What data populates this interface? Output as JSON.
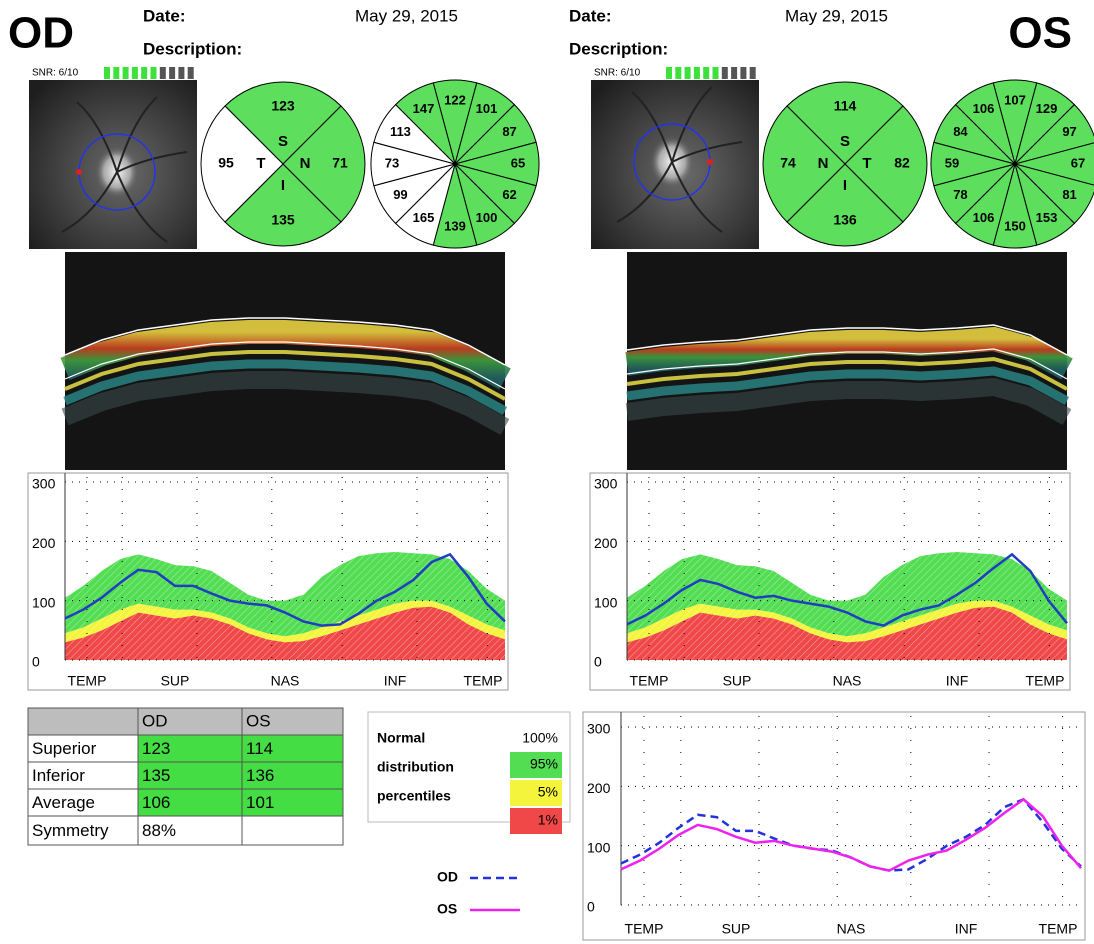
{
  "eyes": [
    {
      "label": "OD",
      "date_label": "Date:",
      "date": "May 29, 2015",
      "description_label": "Description:",
      "snr": "SNR: 6/10",
      "snr_bars": {
        "filled": 6,
        "total": 10
      },
      "quadrants": [
        {
          "label": "S",
          "value": 123,
          "color": "#5ddf5d"
        },
        {
          "label": "N",
          "value": 71,
          "color": "#5ddf5d"
        },
        {
          "label": "I",
          "value": 135,
          "color": "#5ddf5d"
        },
        {
          "label": "T",
          "value": 95,
          "color": "#ffffff"
        }
      ],
      "clock_hours": [
        {
          "value": 122,
          "color": "#5ddf5d"
        },
        {
          "value": 101,
          "color": "#5ddf5d"
        },
        {
          "value": 87,
          "color": "#5ddf5d"
        },
        {
          "value": 65,
          "color": "#5ddf5d"
        },
        {
          "value": 62,
          "color": "#5ddf5d"
        },
        {
          "value": 100,
          "color": "#5ddf5d"
        },
        {
          "value": 139,
          "color": "#5ddf5d"
        },
        {
          "value": 165,
          "color": "#ffffff"
        },
        {
          "value": 99,
          "color": "#ffffff"
        },
        {
          "value": 73,
          "color": "#ffffff"
        },
        {
          "value": 113,
          "color": "#ffffff"
        },
        {
          "value": 147,
          "color": "#5ddf5d"
        }
      ],
      "tsnit_values": [
        70,
        85,
        105,
        130,
        152,
        148,
        125,
        125,
        112,
        100,
        95,
        92,
        80,
        65,
        58,
        60,
        78,
        100,
        115,
        135,
        165,
        178,
        140,
        95,
        65
      ],
      "tsnit_color": "#1f3fc0"
    },
    {
      "label": "OS",
      "date_label": "Date:",
      "date": "May 29, 2015",
      "description_label": "Description:",
      "snr": "SNR: 6/10",
      "snr_bars": {
        "filled": 6,
        "total": 10
      },
      "quadrants": [
        {
          "label": "S",
          "value": 114,
          "color": "#5ddf5d"
        },
        {
          "label": "T",
          "value": 82,
          "color": "#5ddf5d"
        },
        {
          "label": "I",
          "value": 136,
          "color": "#5ddf5d"
        },
        {
          "label": "N",
          "value": 74,
          "color": "#5ddf5d"
        }
      ],
      "clock_hours": [
        {
          "value": 107,
          "color": "#5ddf5d"
        },
        {
          "value": 129,
          "color": "#5ddf5d"
        },
        {
          "value": 97,
          "color": "#5ddf5d"
        },
        {
          "value": 67,
          "color": "#5ddf5d"
        },
        {
          "value": 81,
          "color": "#5ddf5d"
        },
        {
          "value": 153,
          "color": "#5ddf5d"
        },
        {
          "value": 150,
          "color": "#5ddf5d"
        },
        {
          "value": 106,
          "color": "#5ddf5d"
        },
        {
          "value": 78,
          "color": "#5ddf5d"
        },
        {
          "value": 59,
          "color": "#5ddf5d"
        },
        {
          "value": 84,
          "color": "#5ddf5d"
        },
        {
          "value": 106,
          "color": "#5ddf5d"
        }
      ],
      "tsnit_values": [
        60,
        75,
        95,
        118,
        135,
        128,
        115,
        105,
        108,
        100,
        95,
        90,
        80,
        65,
        58,
        75,
        85,
        92,
        110,
        130,
        155,
        178,
        150,
        100,
        62
      ],
      "tsnit_color": "#1f3fc0"
    }
  ],
  "tsnit_axes": {
    "type": "line",
    "ylim": [
      0,
      300
    ],
    "yticks": [
      0,
      100,
      200,
      300
    ],
    "x_labels": [
      "TEMP",
      "SUP",
      "NAS",
      "INF",
      "TEMP"
    ],
    "grid": true
  },
  "normal": {
    "title_lines": [
      "Normal",
      "distribution",
      "percentiles"
    ],
    "levels": [
      {
        "label": "100%",
        "color": "#ffffff"
      },
      {
        "label": "95%",
        "color": "#52dd52"
      },
      {
        "label": "5%",
        "color": "#f4f43c"
      },
      {
        "label": "1%",
        "color": "#f04848"
      }
    ],
    "p95": [
      105,
      125,
      150,
      170,
      178,
      170,
      160,
      158,
      150,
      130,
      110,
      100,
      100,
      110,
      140,
      160,
      175,
      180,
      182,
      180,
      178,
      170,
      150,
      120,
      100
    ],
    "p5": [
      45,
      55,
      70,
      85,
      95,
      90,
      85,
      85,
      80,
      70,
      55,
      45,
      40,
      45,
      55,
      65,
      75,
      85,
      95,
      100,
      100,
      90,
      75,
      60,
      50
    ],
    "p1": [
      30,
      38,
      50,
      65,
      80,
      75,
      70,
      75,
      70,
      60,
      45,
      35,
      30,
      32,
      40,
      50,
      60,
      70,
      80,
      88,
      90,
      80,
      60,
      45,
      35
    ]
  },
  "comparison": {
    "series": [
      {
        "name": "OD",
        "color": "#2233dd",
        "dashed": true
      },
      {
        "name": "OS",
        "color": "#ee22ee",
        "dashed": false
      }
    ]
  },
  "table": {
    "header": [
      "OD",
      "OS"
    ],
    "rows": [
      {
        "label": "Superior",
        "od": 123,
        "os": 114,
        "color": "#44dd44"
      },
      {
        "label": "Inferior",
        "od": 135,
        "os": 136,
        "color": "#44dd44"
      },
      {
        "label": "Average",
        "od": 106,
        "os": 101,
        "color": "#44dd44"
      },
      {
        "label": "Symmetry",
        "od": "88%",
        "color": "#ffffff"
      }
    ]
  }
}
